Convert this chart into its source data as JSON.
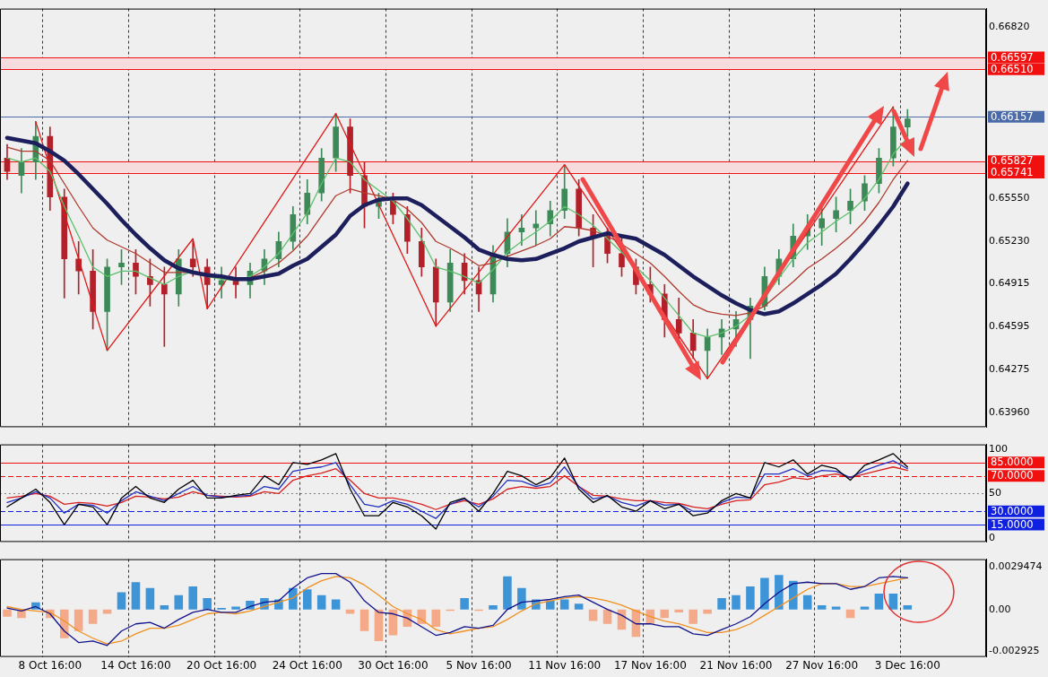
{
  "chart_data": [
    {
      "type": "candlestick",
      "categories": [
        null,
        null,
        null,
        null,
        null,
        null,
        null,
        null,
        null,
        null,
        null,
        null,
        null,
        null,
        null,
        null,
        null,
        null,
        null,
        null,
        null,
        null,
        null,
        null,
        null,
        null,
        null,
        null,
        null,
        null,
        null,
        null,
        null,
        null,
        null,
        null,
        null,
        null,
        null,
        null,
        null,
        null,
        null,
        null,
        null,
        null,
        null,
        null,
        null,
        null,
        null,
        null,
        null,
        null,
        null,
        null,
        null,
        null,
        null,
        null,
        null,
        null,
        null,
        null,
        null,
        null,
        null,
        null,
        null
      ],
      "ohlc": [
        [
          0.6585,
          0.6595,
          0.6569,
          0.6575
        ],
        [
          0.6572,
          0.6592,
          0.6559,
          0.6582
        ],
        [
          0.6582,
          0.6612,
          0.6569,
          0.6601
        ],
        [
          0.6601,
          0.6608,
          0.6546,
          0.6556
        ],
        [
          0.6556,
          0.6562,
          0.6481,
          0.651
        ],
        [
          0.651,
          0.6523,
          0.6484,
          0.6501
        ],
        [
          0.6501,
          0.6517,
          0.6458,
          0.6471
        ],
        [
          0.6471,
          0.651,
          0.6442,
          0.6504
        ],
        [
          0.6504,
          0.6517,
          0.6491,
          0.6507
        ],
        [
          0.6507,
          0.6517,
          0.6484,
          0.6497
        ],
        [
          0.6497,
          0.651,
          0.6475,
          0.6491
        ],
        [
          0.6491,
          0.6504,
          0.6445,
          0.6484
        ],
        [
          0.6484,
          0.6517,
          0.6475,
          0.651
        ],
        [
          0.651,
          0.6525,
          0.6497,
          0.6504
        ],
        [
          0.6504,
          0.651,
          0.6473,
          0.6491
        ],
        [
          0.6491,
          0.6504,
          0.6481,
          0.6494
        ],
        [
          0.6494,
          0.6504,
          0.6481,
          0.6491
        ],
        [
          0.6491,
          0.6507,
          0.6481,
          0.6501
        ],
        [
          0.6501,
          0.6517,
          0.6491,
          0.651
        ],
        [
          0.651,
          0.653,
          0.6504,
          0.6523
        ],
        [
          0.6523,
          0.6549,
          0.6517,
          0.6543
        ],
        [
          0.6543,
          0.6569,
          0.6536,
          0.6559
        ],
        [
          0.6559,
          0.6592,
          0.6553,
          0.6585
        ],
        [
          0.6585,
          0.6618,
          0.6575,
          0.6608
        ],
        [
          0.6608,
          0.6614,
          0.6559,
          0.6572
        ],
        [
          0.6572,
          0.6582,
          0.6533,
          0.6549
        ],
        [
          0.6549,
          0.6559,
          0.654,
          0.6553
        ],
        [
          0.6553,
          0.6559,
          0.6536,
          0.6543
        ],
        [
          0.6543,
          0.6549,
          0.6514,
          0.6523
        ],
        [
          0.6523,
          0.6533,
          0.6497,
          0.6504
        ],
        [
          0.6504,
          0.651,
          0.646,
          0.6478
        ],
        [
          0.6478,
          0.6517,
          0.6471,
          0.6507
        ],
        [
          0.6507,
          0.6514,
          0.6484,
          0.6494
        ],
        [
          0.6494,
          0.6504,
          0.6471,
          0.6484
        ],
        [
          0.6484,
          0.652,
          0.6478,
          0.6514
        ],
        [
          0.6514,
          0.654,
          0.6504,
          0.653
        ],
        [
          0.653,
          0.6543,
          0.652,
          0.6533
        ],
        [
          0.6533,
          0.6546,
          0.652,
          0.6536
        ],
        [
          0.6536,
          0.6553,
          0.6527,
          0.6546
        ],
        [
          0.6546,
          0.658,
          0.654,
          0.6562
        ],
        [
          0.6562,
          0.6569,
          0.6527,
          0.6533
        ],
        [
          0.6533,
          0.6543,
          0.6504,
          0.6527
        ],
        [
          0.6527,
          0.6533,
          0.6507,
          0.6514
        ],
        [
          0.6514,
          0.6527,
          0.6497,
          0.6504
        ],
        [
          0.6504,
          0.651,
          0.6484,
          0.6491
        ],
        [
          0.6491,
          0.6504,
          0.6478,
          0.6484
        ],
        [
          0.6484,
          0.6491,
          0.6452,
          0.6465
        ],
        [
          0.6465,
          0.6481,
          0.6449,
          0.6455
        ],
        [
          0.6455,
          0.6465,
          0.6436,
          0.6442
        ],
        [
          0.6442,
          0.6458,
          0.6421,
          0.6452
        ],
        [
          0.6452,
          0.6465,
          0.6439,
          0.6458
        ],
        [
          0.6458,
          0.6471,
          0.6445,
          0.6465
        ],
        [
          0.6465,
          0.6481,
          0.6436,
          0.6475
        ],
        [
          0.6475,
          0.6504,
          0.6472,
          0.6497
        ],
        [
          0.6497,
          0.6517,
          0.6491,
          0.651
        ],
        [
          0.651,
          0.6536,
          0.6504,
          0.6527
        ],
        [
          0.6527,
          0.6543,
          0.6517,
          0.6533
        ],
        [
          0.6533,
          0.6549,
          0.652,
          0.654
        ],
        [
          0.654,
          0.6556,
          0.653,
          0.6546
        ],
        [
          0.6546,
          0.6562,
          0.6536,
          0.6553
        ],
        [
          0.6553,
          0.6572,
          0.6546,
          0.6566
        ],
        [
          0.6566,
          0.6592,
          0.6559,
          0.6585
        ],
        [
          0.6585,
          0.6623,
          0.6579,
          0.6608
        ],
        [
          0.6608,
          0.6621,
          0.6601,
          0.6614
        ],
        null,
        null,
        null,
        null,
        null
      ],
      "series": [
        {
          "type": "line",
          "color": "#1c1f5c",
          "values": [
            0.66,
            0.6598,
            0.6596,
            0.659,
            0.6583,
            0.6573,
            0.6562,
            0.6551,
            0.6539,
            0.6528,
            0.6518,
            0.6509,
            0.6503,
            0.65,
            0.6498,
            0.6497,
            0.6495,
            0.6495,
            0.6497,
            0.6499,
            0.6505,
            0.651,
            0.6519,
            0.6528,
            0.6542,
            0.655,
            0.6554,
            0.6555,
            0.6555,
            0.655,
            0.6542,
            0.6534,
            0.6526,
            0.6517,
            0.6513,
            0.651,
            0.6509,
            0.651,
            0.6514,
            0.6518,
            0.6523,
            0.6526,
            0.6529,
            0.6527,
            0.6525,
            0.6519,
            0.6513,
            0.6505,
            0.6497,
            0.649,
            0.6483,
            0.6477,
            0.6472,
            0.6469,
            0.6471,
            0.6477,
            0.6484,
            0.6491,
            0.6499,
            0.651,
            0.6522,
            0.6535,
            0.6549,
            0.6566,
            null,
            null,
            null,
            null,
            null
          ]
        },
        {
          "type": "line",
          "color": "#5cbf6a",
          "values": [
            0.6585,
            0.6582,
            0.6585,
            0.6575,
            0.6549,
            0.6527,
            0.6504,
            0.6497,
            0.6501,
            0.6501,
            0.6496,
            0.6491,
            0.6497,
            0.6501,
            0.6497,
            0.6495,
            0.6494,
            0.6497,
            0.6504,
            0.6514,
            0.6529,
            0.6544,
            0.6566,
            0.6585,
            0.6582,
            0.6569,
            0.6561,
            0.6553,
            0.654,
            0.6525,
            0.6504,
            0.6501,
            0.6497,
            0.6492,
            0.6502,
            0.6515,
            0.6523,
            0.653,
            0.6538,
            0.6549,
            0.6543,
            0.6535,
            0.6525,
            0.6515,
            0.6504,
            0.6494,
            0.6481,
            0.6468,
            0.6455,
            0.6452,
            0.6455,
            0.646,
            0.6468,
            0.6481,
            0.6496,
            0.651,
            0.6522,
            0.653,
            0.6538,
            0.6545,
            0.6555,
            0.6569,
            0.6588,
            0.66,
            null,
            null,
            null,
            null,
            null
          ]
        },
        {
          "type": "line",
          "color": "#b03a2e",
          "values": [
            0.6593,
            0.659,
            0.659,
            0.6583,
            0.6566,
            0.6549,
            0.6533,
            0.6524,
            0.6519,
            0.6514,
            0.6507,
            0.65,
            0.65,
            0.65,
            0.6497,
            0.6496,
            0.6495,
            0.6496,
            0.6501,
            0.6507,
            0.6516,
            0.6527,
            0.6542,
            0.6557,
            0.6562,
            0.6559,
            0.6557,
            0.6554,
            0.6547,
            0.6537,
            0.6523,
            0.6518,
            0.6512,
            0.6505,
            0.6507,
            0.6512,
            0.6516,
            0.652,
            0.6525,
            0.6534,
            0.6533,
            0.6531,
            0.6527,
            0.6521,
            0.6514,
            0.6507,
            0.6497,
            0.6486,
            0.6476,
            0.6471,
            0.6469,
            0.6468,
            0.647,
            0.6475,
            0.6484,
            0.6493,
            0.6503,
            0.651,
            0.6518,
            0.6527,
            0.6538,
            0.6552,
            0.6569,
            0.6583,
            null,
            null,
            null,
            null,
            null
          ]
        },
        {
          "type": "line",
          "color": "#e01818",
          "values": [
            null,
            null,
            0.6612,
            null,
            null,
            null,
            null,
            0.6442,
            null,
            null,
            null,
            null,
            null,
            0.6525,
            0.6473,
            null,
            null,
            null,
            null,
            null,
            null,
            null,
            null,
            0.6618,
            null,
            null,
            null,
            null,
            null,
            null,
            0.646,
            null,
            null,
            null,
            null,
            null,
            null,
            null,
            null,
            0.658,
            null,
            null,
            null,
            null,
            null,
            null,
            null,
            null,
            null,
            0.6421,
            null,
            null,
            null,
            null,
            null,
            null,
            null,
            null,
            null,
            null,
            null,
            null,
            0.6623,
            null,
            null,
            null,
            null,
            null,
            null
          ]
        }
      ],
      "ylim": [
        0.6385,
        0.6696
      ],
      "yticks": [
        {
          "value": 0.6682,
          "label": "0.66820"
        },
        {
          "value": 0.6555,
          "label": "0.65550"
        },
        {
          "value": 0.6523,
          "label": "0.65230"
        },
        0.64915,
        0.64595,
        0.64275,
        {
          "value": 0.6396,
          "label": "0.63960"
        }
      ],
      "ref_lines": [
        {
          "axis": "y",
          "value": 0.66597,
          "label": "0.66597",
          "color": "#f01010",
          "line_style": "solid"
        },
        {
          "axis": "y",
          "value": 0.6651,
          "label": "0.66510",
          "color": "#f01010",
          "line_style": "solid"
        },
        {
          "axis": "y",
          "value": 0.66157,
          "label": "0.66157",
          "color": "#4a6aa8",
          "line_style": "solid"
        },
        {
          "axis": "y",
          "value": 0.65827,
          "label": "0.65827",
          "color": "#f01010",
          "line_style": "solid"
        },
        {
          "axis": "y",
          "value": 0.65741,
          "label": "0.65741",
          "color": "#f01010",
          "line_style": "solid"
        }
      ],
      "bands": [
        {
          "axis": "y",
          "from": 0.6651,
          "to": 0.66597,
          "color": "#f6dcdc"
        },
        {
          "axis": "y",
          "from": 0.65741,
          "to": 0.65827,
          "color": "#f6dcdc"
        }
      ],
      "grid": "x",
      "tick_labels": "y"
    },
    {
      "type": "line",
      "categories": [
        null,
        null,
        null,
        null,
        null,
        null,
        null,
        null,
        null,
        null,
        null,
        null,
        null,
        null,
        null,
        null,
        null,
        null,
        null,
        null,
        null,
        null,
        null,
        null,
        null,
        null,
        null,
        null,
        null,
        null,
        null,
        null,
        null,
        null,
        null,
        null,
        null,
        null,
        null,
        null,
        null,
        null,
        null,
        null,
        null,
        null,
        null,
        null,
        null,
        null,
        null,
        null,
        null,
        null,
        null,
        null,
        null,
        null,
        null,
        null,
        null,
        null,
        null,
        null,
        null,
        null,
        null,
        null,
        null
      ],
      "series": [
        {
          "color": "#000000",
          "values": [
            35,
            45,
            55,
            40,
            15,
            38,
            35,
            15,
            45,
            58,
            45,
            40,
            55,
            65,
            45,
            45,
            48,
            50,
            70,
            60,
            85,
            83,
            88,
            95,
            55,
            25,
            25,
            40,
            35,
            25,
            10,
            40,
            45,
            30,
            50,
            75,
            70,
            60,
            68,
            90,
            55,
            40,
            48,
            35,
            30,
            42,
            33,
            38,
            25,
            28,
            42,
            50,
            45,
            85,
            80,
            88,
            72,
            82,
            78,
            65,
            82,
            88,
            95,
            80,
            null,
            null,
            null,
            null,
            null
          ]
        },
        {
          "color": "#2030c0",
          "values": [
            40,
            45,
            52,
            45,
            28,
            38,
            37,
            28,
            42,
            52,
            47,
            42,
            50,
            58,
            48,
            46,
            47,
            48,
            58,
            55,
            75,
            78,
            80,
            85,
            60,
            38,
            35,
            42,
            38,
            30,
            22,
            38,
            44,
            35,
            47,
            65,
            64,
            58,
            62,
            80,
            58,
            44,
            47,
            40,
            36,
            42,
            37,
            38,
            30,
            30,
            40,
            46,
            45,
            72,
            72,
            78,
            70,
            76,
            75,
            68,
            76,
            82,
            87,
            78,
            null,
            null,
            null,
            null,
            null
          ]
        },
        {
          "color": "#d82020",
          "values": [
            45,
            47,
            50,
            47,
            38,
            40,
            39,
            36,
            40,
            47,
            46,
            44,
            46,
            52,
            48,
            47,
            46,
            47,
            52,
            50,
            65,
            70,
            73,
            78,
            65,
            50,
            45,
            45,
            42,
            38,
            32,
            38,
            42,
            38,
            44,
            55,
            58,
            56,
            58,
            70,
            58,
            48,
            47,
            44,
            42,
            42,
            40,
            39,
            35,
            33,
            38,
            42,
            43,
            60,
            63,
            68,
            66,
            70,
            72,
            68,
            72,
            76,
            80,
            76,
            null,
            null,
            null,
            null,
            null
          ]
        }
      ],
      "ylim": [
        -4.5,
        105.4
      ],
      "yticks": [
        0,
        50,
        100
      ],
      "ref_lines": [
        {
          "axis": "y",
          "value": 85,
          "label": "85.0000",
          "color": "#f01010",
          "line_style": "solid"
        },
        {
          "axis": "y",
          "value": 70,
          "label": "70.0000",
          "color": "#f01010",
          "line_style": "dashed"
        },
        {
          "axis": "y",
          "value": 50,
          "color": "#808080",
          "line_style": "dotted"
        },
        {
          "axis": "y",
          "value": 30,
          "label": "30.0000",
          "color": "#1020e0",
          "line_style": "dashed"
        },
        {
          "axis": "y",
          "value": 15,
          "label": "15.0000",
          "color": "#1020e0",
          "line_style": "solid"
        }
      ],
      "grid": "x",
      "tick_labels": "y"
    },
    {
      "type": "bar",
      "categories": [
        null,
        null,
        null,
        "8 Oct 16:00",
        null,
        null,
        null,
        null,
        null,
        "14 Oct 16:00",
        null,
        null,
        null,
        null,
        null,
        "20 Oct 16:00",
        null,
        null,
        null,
        null,
        null,
        "24 Oct 16:00",
        null,
        null,
        null,
        null,
        null,
        "30 Oct 16:00",
        null,
        null,
        null,
        null,
        null,
        "5 Nov 16:00",
        null,
        null,
        null,
        null,
        null,
        "11 Nov 16:00",
        null,
        null,
        null,
        null,
        null,
        "17 Nov 16:00",
        null,
        null,
        null,
        null,
        null,
        "21 Nov 16:00",
        null,
        null,
        null,
        null,
        null,
        "27 Nov 16:00",
        null,
        null,
        null,
        null,
        null,
        "3 Dec 16:00",
        null,
        null,
        null,
        null,
        null
      ],
      "series": [
        {
          "type": "bar",
          "colors": [
            "#f4a989",
            "#f4a989",
            "#3d95d8",
            "#f4a989",
            "#f4a989",
            "#f4a989",
            "#f4a989",
            "#f4a989",
            "#3d95d8",
            "#3d95d8",
            "#3d95d8",
            "#3d95d8",
            "#3d95d8",
            "#3d95d8",
            "#3d95d8",
            "#3d95d8",
            "#3d95d8",
            "#3d95d8",
            "#3d95d8",
            "#3d95d8",
            "#3d95d8",
            "#3d95d8",
            "#3d95d8",
            "#3d95d8",
            "#f4a989",
            "#f4a989",
            "#f4a989",
            "#f4a989",
            "#f4a989",
            "#f4a989",
            "#f4a989",
            "#f4a989",
            "#3d95d8",
            "#f4a989",
            "#3d95d8",
            "#3d95d8",
            "#3d95d8",
            "#3d95d8",
            "#3d95d8",
            "#3d95d8",
            "#3d95d8",
            "#f4a989",
            "#f4a989",
            "#f4a989",
            "#f4a989",
            "#f4a989",
            "#f4a989",
            "#f4a989",
            "#f4a989",
            "#f4a989",
            "#3d95d8",
            "#3d95d8",
            "#3d95d8",
            "#3d95d8",
            "#3d95d8",
            "#3d95d8",
            "#3d95d8",
            "#3d95d8",
            "#3d95d8",
            "#f4a989",
            "#3d95d8",
            "#3d95d8",
            "#3d95d8",
            "#3d95d8",
            null,
            null,
            null,
            null,
            null
          ],
          "values": [
            -0.0005,
            -0.0006,
            0.0005,
            -0.0006,
            -0.002,
            -0.0015,
            -0.001,
            -0.0003,
            0.0012,
            0.0019,
            0.0015,
            0.0003,
            0.001,
            0.0016,
            0.0008,
            0.0001,
            0.0002,
            0.0006,
            0.0008,
            0.0007,
            0.0015,
            0.0014,
            0.001,
            0.0007,
            -0.0003,
            -0.0015,
            -0.0022,
            -0.0018,
            -0.0012,
            -0.001,
            -0.0012,
            -0.0001,
            0.0008,
            -0.0001,
            0.0003,
            0.0023,
            0.0015,
            0.0007,
            0.0006,
            0.0007,
            0.0004,
            -0.0008,
            -0.001,
            -0.0014,
            -0.0019,
            -0.001,
            -0.0006,
            -0.0002,
            -0.001,
            -0.0003,
            0.0008,
            0.001,
            0.0016,
            0.0022,
            0.0024,
            0.002,
            0.001,
            0.0003,
            0.0002,
            -0.0006,
            0.0002,
            0.0011,
            0.0011,
            0.0003,
            null,
            null,
            null,
            null,
            null
          ]
        },
        {
          "type": "line",
          "color": "#12128c",
          "values": [
            0.0001,
            -0.0001,
            0.0002,
            -0.0003,
            -0.0015,
            -0.0023,
            -0.0022,
            -0.0025,
            -0.0015,
            -0.001,
            -0.0009,
            -0.0013,
            -0.0007,
            -0.0002,
            0,
            -0.0002,
            -0.0002,
            0.0002,
            0.0005,
            0.0006,
            0.0015,
            0.0022,
            0.0025,
            0.0025,
            0.0019,
            0.0006,
            -0.0002,
            -0.0003,
            -0.0006,
            -0.0012,
            -0.0018,
            -0.0016,
            -0.0012,
            -0.0013,
            -0.0011,
            0,
            0.0005,
            0.0006,
            0.0007,
            0.0009,
            0.001,
            0.0005,
            0,
            -0.0004,
            -0.001,
            -0.001,
            -0.0012,
            -0.0012,
            -0.0017,
            -0.0018,
            -0.0014,
            -0.001,
            -0.0005,
            0.0004,
            0.0012,
            0.0018,
            0.0019,
            0.0018,
            0.0018,
            0.0014,
            0.0016,
            0.0022,
            0.0023,
            0.0022,
            null,
            null,
            null,
            null,
            null
          ]
        },
        {
          "type": "line",
          "color": "#f0901e",
          "values": [
            0.0002,
            0,
            -0.0001,
            -0.0002,
            -0.0008,
            -0.0015,
            -0.002,
            -0.0024,
            -0.0022,
            -0.0017,
            -0.0013,
            -0.0013,
            -0.0011,
            -0.0007,
            -0.0003,
            -0.0002,
            -0.0003,
            -0.0001,
            0.0002,
            0.0005,
            0.0008,
            0.0015,
            0.002,
            0.0023,
            0.0022,
            0.0017,
            0.001,
            0.0002,
            -0.0003,
            -0.0007,
            -0.0014,
            -0.0017,
            -0.0015,
            -0.0013,
            -0.0012,
            -0.0007,
            -0.0001,
            0.0004,
            0.0006,
            0.0008,
            0.0009,
            0.0008,
            0.0006,
            0.0003,
            -0.0001,
            -0.0005,
            -0.0008,
            -0.001,
            -0.0013,
            -0.0016,
            -0.0016,
            -0.0014,
            -0.001,
            -0.0004,
            0.0002,
            0.0008,
            0.0014,
            0.0018,
            0.0018,
            0.0016,
            0.0016,
            0.0018,
            0.002,
            0.0022,
            null,
            null,
            null,
            null,
            null
          ]
        }
      ],
      "ylim": [
        -0.0033,
        0.0035
      ],
      "yticks": [
        0.0029474,
        {
          "value": 0,
          "label": "0.00"
        },
        -0.002925
      ],
      "grid": "x"
    }
  ]
}
